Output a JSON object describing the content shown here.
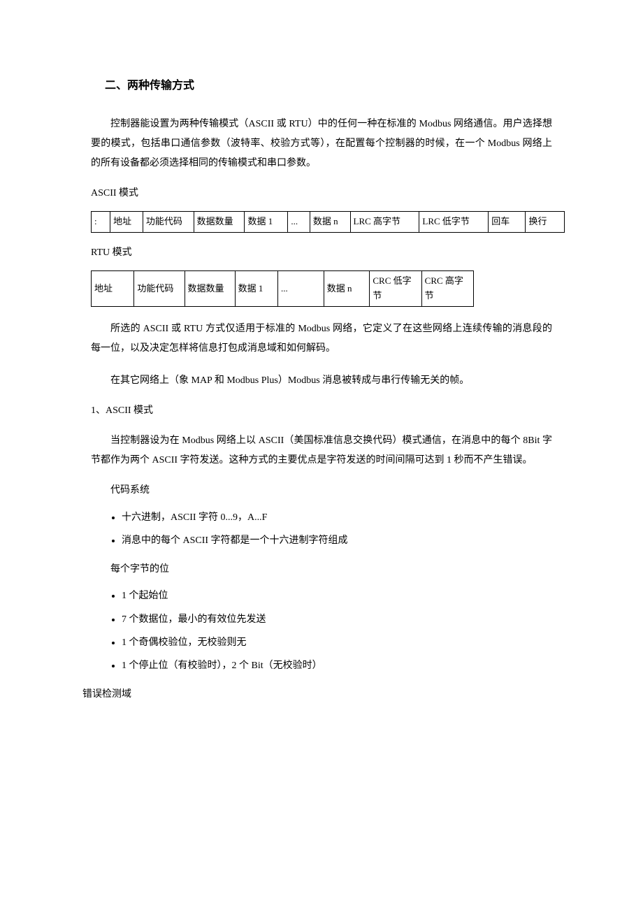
{
  "section_title": "二、两种传输方式",
  "intro_paragraph": "控制器能设置为两种传输模式（ASCII 或 RTU）中的任何一种在标准的 Modbus 网络通信。用户选择想要的模式，包括串口通信参数（波特率、校验方式等），在配置每个控制器的时候，在一个 Modbus 网络上的所有设备都必须选择相同的传输模式和串口参数。",
  "ascii_label": "ASCII 模式",
  "ascii_table": {
    "cells": [
      ":",
      "地址",
      "功能代码",
      "数据数量",
      "数据 1",
      "...",
      "数据 n",
      "LRC 高字节",
      "LRC 低字节",
      "回车",
      "换行"
    ]
  },
  "rtu_label": "RTU 模式",
  "rtu_table": {
    "cells": [
      "地址",
      "功能代码",
      "数据数量",
      "数据 1",
      "...",
      "数据 n",
      "CRC 低字节",
      "CRC 高字节"
    ]
  },
  "para2": "所选的 ASCII 或 RTU 方式仅适用于标准的 Modbus 网络，它定义了在这些网络上连续传输的消息段的每一位，以及决定怎样将信息打包成消息域和如何解码。",
  "para3": "在其它网络上（象 MAP 和 Modbus Plus）Modbus 消息被转成与串行传输无关的帧。",
  "sub_heading_1": "1、ASCII 模式",
  "para4": "当控制器设为在 Modbus 网络上以 ASCII（美国标准信息交换代码）模式通信，在消息中的每个 8Bit 字节都作为两个 ASCII 字符发送。这种方式的主要优点是字符发送的时间间隔可达到 1 秒而不产生错误。",
  "code_system_label": "代码系统",
  "code_system_bullets": [
    "十六进制，ASCII 字符 0...9，A...F",
    "消息中的每个 ASCII 字符都是一个十六进制字符组成"
  ],
  "bits_per_byte_label": "每个字节的位",
  "bits_per_byte_bullets": [
    "1 个起始位",
    "7 个数据位，最小的有效位先发送",
    "1 个奇偶校验位，无校验则无",
    "1 个停止位（有校验时），2 个 Bit（无校验时）"
  ],
  "error_domain_label": "错误检测域"
}
